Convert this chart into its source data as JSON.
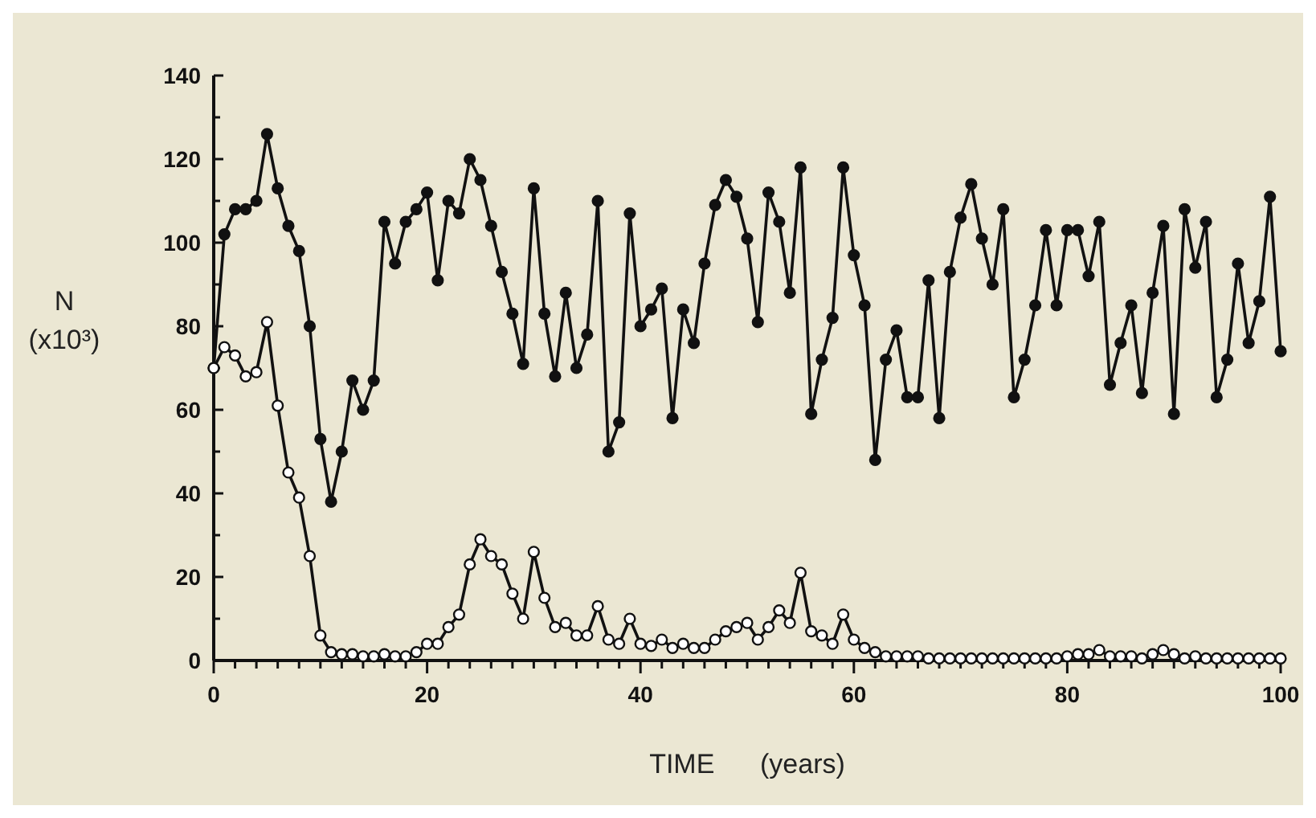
{
  "chart_data": {
    "type": "line",
    "xlabel": "TIME      (years)",
    "ylabel": "N\n(x10³)",
    "xlim": [
      0,
      100
    ],
    "ylim": [
      0,
      140
    ],
    "xticks": [
      0,
      {
        "value": 2,
        "label": null
      },
      {
        "value": 4,
        "label": null
      },
      {
        "value": 6,
        "label": null
      },
      {
        "value": 8,
        "label": null
      },
      {
        "value": 10,
        "label": null
      },
      {
        "value": 12,
        "label": null
      },
      {
        "value": 14,
        "label": null
      },
      {
        "value": 16,
        "label": null
      },
      {
        "value": 18,
        "label": null
      },
      20,
      {
        "value": 22,
        "label": null
      },
      {
        "value": 24,
        "label": null
      },
      {
        "value": 26,
        "label": null
      },
      {
        "value": 28,
        "label": null
      },
      {
        "value": 30,
        "label": null
      },
      {
        "value": 32,
        "label": null
      },
      {
        "value": 34,
        "label": null
      },
      {
        "value": 36,
        "label": null
      },
      {
        "value": 38,
        "label": null
      },
      40,
      {
        "value": 42,
        "label": null
      },
      {
        "value": 44,
        "label": null
      },
      {
        "value": 46,
        "label": null
      },
      {
        "value": 48,
        "label": null
      },
      {
        "value": 50,
        "label": null
      },
      {
        "value": 52,
        "label": null
      },
      {
        "value": 54,
        "label": null
      },
      {
        "value": 56,
        "label": null
      },
      {
        "value": 58,
        "label": null
      },
      60,
      {
        "value": 62,
        "label": null
      },
      {
        "value": 64,
        "label": null
      },
      {
        "value": 66,
        "label": null
      },
      {
        "value": 68,
        "label": null
      },
      {
        "value": 70,
        "label": null
      },
      {
        "value": 72,
        "label": null
      },
      {
        "value": 74,
        "label": null
      },
      {
        "value": 76,
        "label": null
      },
      {
        "value": 78,
        "label": null
      },
      80,
      {
        "value": 82,
        "label": null
      },
      {
        "value": 84,
        "label": null
      },
      {
        "value": 86,
        "label": null
      },
      {
        "value": 88,
        "label": null
      },
      {
        "value": 90,
        "label": null
      },
      {
        "value": 92,
        "label": null
      },
      {
        "value": 94,
        "label": null
      },
      {
        "value": 96,
        "label": null
      },
      {
        "value": 98,
        "label": null
      },
      100
    ],
    "yticks": [
      0,
      {
        "value": 10,
        "label": null
      },
      20,
      {
        "value": 30,
        "label": null
      },
      40,
      {
        "value": 50,
        "label": null
      },
      60,
      {
        "value": 70,
        "label": null
      },
      80,
      {
        "value": 90,
        "label": null
      },
      100,
      {
        "value": 110,
        "label": null
      },
      120,
      {
        "value": 130,
        "label": null
      },
      140
    ],
    "grid": false,
    "marker": "circle",
    "line_style": "solid",
    "x": [
      0,
      1,
      2,
      3,
      4,
      5,
      6,
      7,
      8,
      9,
      10,
      11,
      12,
      13,
      14,
      15,
      16,
      17,
      18,
      19,
      20,
      21,
      22,
      23,
      24,
      25,
      26,
      27,
      28,
      29,
      30,
      31,
      32,
      33,
      34,
      35,
      36,
      37,
      38,
      39,
      40,
      41,
      42,
      43,
      44,
      45,
      46,
      47,
      48,
      49,
      50,
      51,
      52,
      53,
      54,
      55,
      56,
      57,
      58,
      59,
      60,
      61,
      62,
      63,
      64,
      65,
      66,
      67,
      68,
      69,
      70,
      71,
      72,
      73,
      74,
      75,
      76,
      77,
      78,
      79,
      80,
      81,
      82,
      83,
      84,
      85,
      86,
      87,
      88,
      89,
      90,
      91,
      92,
      93,
      94,
      95,
      96,
      97,
      98,
      99,
      100
    ],
    "series": [
      {
        "color": "#111111",
        "values": [
          70,
          102,
          108,
          108,
          110,
          126,
          113,
          104,
          98,
          80,
          53,
          38,
          50,
          67,
          60,
          67,
          105,
          95,
          105,
          108,
          112,
          91,
          110,
          107,
          120,
          115,
          104,
          93,
          83,
          71,
          113,
          83,
          68,
          88,
          70,
          78,
          110,
          50,
          57,
          107,
          80,
          84,
          89,
          58,
          84,
          76,
          95,
          109,
          115,
          111,
          101,
          81,
          112,
          105,
          88,
          118,
          59,
          72,
          82,
          118,
          97,
          85,
          48,
          72,
          79,
          63,
          63,
          91,
          58,
          93,
          106,
          114,
          101,
          90,
          108,
          63,
          72,
          85,
          103,
          85,
          103,
          103,
          92,
          105,
          66,
          76,
          85,
          64,
          88,
          104,
          59,
          108,
          94,
          105,
          63,
          72,
          95,
          76,
          86,
          111,
          74
        ]
      },
      {
        "color": "#111111",
        "values": [
          70,
          75,
          73,
          68,
          69,
          81,
          61,
          45,
          39,
          25,
          6,
          2,
          1.5,
          1.5,
          1,
          1,
          1.5,
          1,
          1,
          2,
          4,
          4,
          8,
          11,
          23,
          29,
          25,
          23,
          16,
          10,
          26,
          15,
          8,
          9,
          6,
          6,
          13,
          5,
          4,
          10,
          4,
          3.5,
          5,
          3,
          4,
          3,
          3,
          5,
          7,
          8,
          9,
          5,
          8,
          12,
          9,
          21,
          7,
          6,
          4,
          11,
          5,
          3,
          2,
          1,
          1,
          1,
          1,
          0.5,
          0.5,
          0.5,
          0.5,
          0.5,
          0.5,
          0.5,
          0.5,
          0.5,
          0.5,
          0.5,
          0.5,
          0.5,
          1,
          1.5,
          1.5,
          2.5,
          1,
          1,
          1,
          0.5,
          1.5,
          2.5,
          1.5,
          0.5,
          1,
          0.5,
          0.5,
          0.5,
          0.5,
          0.5,
          0.5,
          0.5,
          0.5
        ]
      }
    ]
  }
}
